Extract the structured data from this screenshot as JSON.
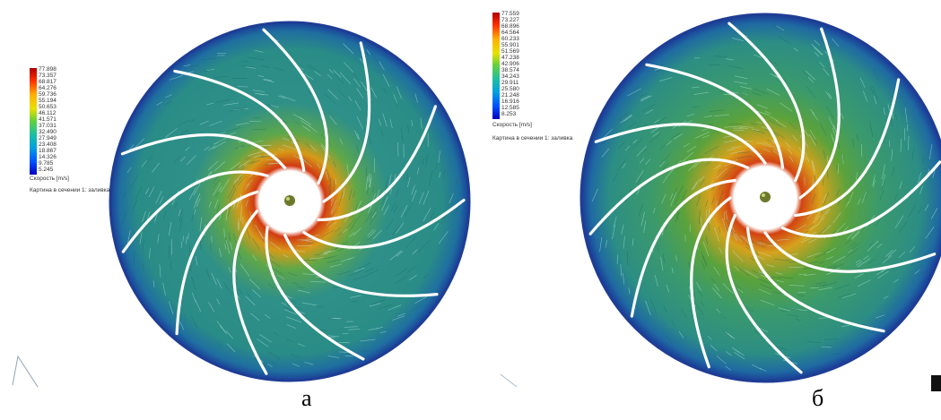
{
  "panels": [
    {
      "id": "a",
      "caption": "а",
      "legend": {
        "title": "Скорость [m/s]",
        "section_label": "Картина в сечении 1: заливка",
        "ticks": [
          "77.898",
          "73.357",
          "68.817",
          "64.276",
          "59.736",
          "55.194",
          "50.653",
          "46.112",
          "41.571",
          "37.031",
          "32.490",
          "27.949",
          "23.408",
          "18.867",
          "14.326",
          "9.785",
          "5.245"
        ]
      }
    },
    {
      "id": "b",
      "caption": "б",
      "legend": {
        "title": "Скорость [m/s]",
        "section_label": "Картина в сечении 1: заливка",
        "ticks": [
          "77.559",
          "73.227",
          "68.896",
          "64.564",
          "60.233",
          "55.901",
          "51.569",
          "47.238",
          "42.906",
          "38.574",
          "34.243",
          "29.911",
          "25.580",
          "21.248",
          "16.916",
          "12.585",
          "8.253"
        ]
      }
    }
  ],
  "colors": {
    "colormap": [
      "#0000cc",
      "#0055ff",
      "#00b4d8",
      "#2ec4a6",
      "#6fd35a",
      "#c4e000",
      "#ffd200",
      "#ff7f00",
      "#e60000",
      "#990000"
    ],
    "flow_base": "#2f8f86",
    "flow_light": "#8ad2c6",
    "rim": "#1f3f90",
    "blade": "#ffffff"
  }
}
